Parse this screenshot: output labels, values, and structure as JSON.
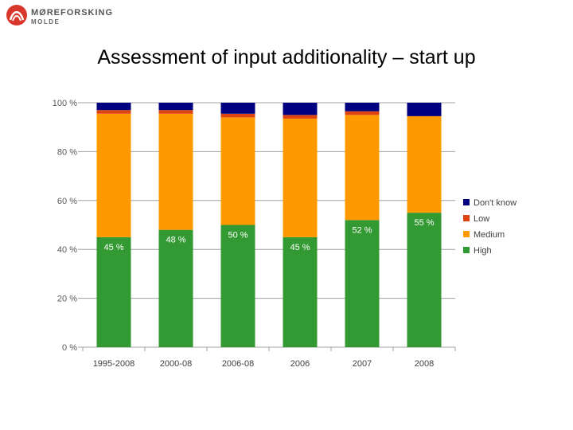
{
  "header": {
    "logo_main": "MØREFORSKING",
    "logo_sub": "MOLDE",
    "title": "Assessment of input additionality – start up"
  },
  "colors": {
    "high": "#339933",
    "medium": "#ff9900",
    "low": "#dd4411",
    "dont_know": "#000080",
    "grid": "#a0a0a0",
    "logo_red": "#d9372b"
  },
  "chart_data": {
    "type": "bar",
    "stacked": true,
    "title": "Assessment of input additionality – start up",
    "categories": [
      "1995-2008",
      "2000-08",
      "2006-08",
      "2006",
      "2007",
      "2008"
    ],
    "series": [
      {
        "name": "High",
        "key": "high",
        "values": [
          45,
          48,
          50,
          45,
          52,
          55
        ]
      },
      {
        "name": "Medium",
        "key": "medium",
        "values": [
          50.5,
          47.5,
          44,
          48.5,
          43,
          39.5
        ]
      },
      {
        "name": "Low",
        "key": "low",
        "values": [
          1.5,
          1.5,
          1.5,
          1.5,
          1.5,
          0
        ]
      },
      {
        "name": "Don't know",
        "key": "dont_know",
        "values": [
          3,
          3,
          4.5,
          5,
          3.5,
          5.5
        ]
      }
    ],
    "data_labels": [
      "45 %",
      "48 %",
      "50 %",
      "45 %",
      "52 %",
      "55 %"
    ],
    "yticks": [
      "0 %",
      "20 %",
      "40 %",
      "60 %",
      "80 %",
      "100 %"
    ],
    "ytick_values": [
      0,
      20,
      40,
      60,
      80,
      100
    ],
    "ylim": [
      0,
      100
    ],
    "legend": [
      "Don't know",
      "Low",
      "Medium",
      "High"
    ],
    "legend_keys": [
      "dont_know",
      "low",
      "medium",
      "high"
    ],
    "legend_position": "right",
    "grid": true,
    "xlabel": "",
    "ylabel": ""
  }
}
